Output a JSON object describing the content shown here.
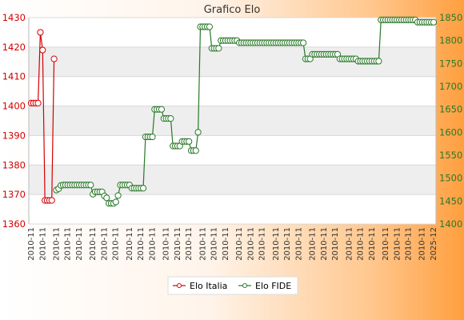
{
  "chart_data": {
    "type": "line",
    "title": "Grafico Elo",
    "legend_position": "bottom",
    "grid": true,
    "x_first_label": "2010-11",
    "x_last_label": "2025-12",
    "left_axis": {
      "ylim": [
        1360,
        1430
      ],
      "ticks": [
        1360,
        1370,
        1380,
        1390,
        1400,
        1410,
        1420,
        1430
      ],
      "color": "#d40000"
    },
    "right_axis": {
      "ylim": [
        1400,
        1850
      ],
      "ticks": [
        1400,
        1450,
        1500,
        1550,
        1600,
        1650,
        1700,
        1750,
        1800,
        1850
      ],
      "color": "#287828"
    },
    "series": [
      {
        "name": "Elo Italia",
        "axis": "left",
        "color": "#d40000",
        "start_index": 0,
        "values": [
          1401,
          1401,
          1401,
          1401,
          1425,
          1419,
          1368,
          1368,
          1368,
          1368,
          1416
        ]
      },
      {
        "name": "Elo FIDE",
        "axis": "right",
        "color": "#287828",
        "start_index": 11,
        "values": [
          1474,
          1477,
          1484,
          1485,
          1485,
          1485,
          1485,
          1485,
          1485,
          1485,
          1485,
          1485,
          1485,
          1485,
          1485,
          1485,
          1465,
          1470,
          1470,
          1470,
          1470,
          1461,
          1457,
          1445,
          1445,
          1445,
          1448,
          1462,
          1485,
          1485,
          1485,
          1485,
          1485,
          1478,
          1478,
          1478,
          1478,
          1478,
          1478,
          1590,
          1590,
          1590,
          1590,
          1650,
          1650,
          1650,
          1650,
          1630,
          1630,
          1630,
          1630,
          1570,
          1570,
          1570,
          1570,
          1580,
          1580,
          1580,
          1580,
          1560,
          1560,
          1560,
          1600,
          1830,
          1830,
          1830,
          1830,
          1830,
          1783,
          1783,
          1783,
          1783,
          1800,
          1800,
          1800,
          1800,
          1800,
          1800,
          1800,
          1800,
          1795,
          1795,
          1795,
          1795,
          1795,
          1795,
          1795,
          1795,
          1795,
          1795,
          1795,
          1795,
          1795,
          1795,
          1795,
          1795,
          1795,
          1795,
          1795,
          1795,
          1795,
          1795,
          1795,
          1795,
          1795,
          1795,
          1795,
          1795,
          1795,
          1760,
          1760,
          1760,
          1770,
          1770,
          1770,
          1770,
          1770,
          1770,
          1770,
          1770,
          1770,
          1770,
          1770,
          1770,
          1760,
          1760,
          1760,
          1760,
          1760,
          1760,
          1760,
          1760,
          1755,
          1755,
          1755,
          1755,
          1755,
          1755,
          1755,
          1755,
          1755,
          1755,
          1845,
          1845,
          1845,
          1845,
          1845,
          1845,
          1845,
          1845,
          1845,
          1845,
          1845,
          1845,
          1845,
          1845,
          1845,
          1845,
          1840,
          1840,
          1840,
          1840,
          1840,
          1840,
          1840,
          1840
        ]
      }
    ]
  }
}
